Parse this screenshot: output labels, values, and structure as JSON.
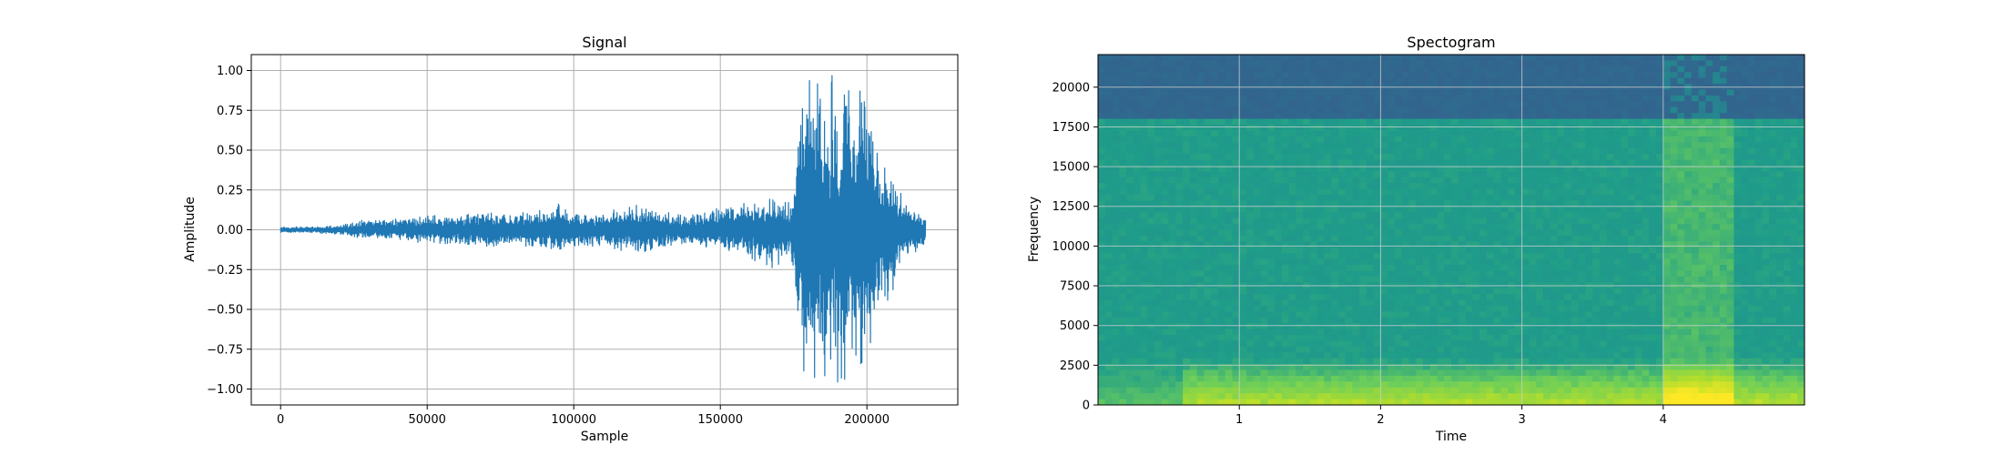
{
  "chart_data": [
    {
      "type": "line",
      "title": "Signal",
      "xlabel": "Sample",
      "ylabel": "Amplitude",
      "xlim": [
        -10000,
        231000
      ],
      "ylim": [
        -1.1,
        1.1
      ],
      "x_ticks": [
        0,
        50000,
        100000,
        150000,
        200000
      ],
      "x_tick_labels": [
        "0",
        "50000",
        "100000",
        "150000",
        "200000"
      ],
      "y_ticks": [
        1.0,
        0.75,
        0.5,
        0.25,
        0.0,
        -0.25,
        -0.5,
        -0.75,
        -1.0
      ],
      "y_tick_labels": [
        "1.00",
        "0.75",
        "0.50",
        "0.25",
        "0.00",
        "−0.25",
        "−0.50",
        "−0.75",
        "−1.00"
      ],
      "grid": true,
      "color": "#1f77b4",
      "series": [
        {
          "x": [
            0,
            10000,
            20000,
            25000,
            30000,
            40000,
            50000,
            60000,
            70000,
            80000,
            90000,
            95000,
            100000,
            110000,
            120000,
            130000,
            140000,
            150000,
            160000,
            170000,
            175000,
            177000,
            180000,
            185000,
            190000,
            195000,
            200000,
            205000,
            210000,
            215000,
            220000
          ],
          "y": [
            0.02,
            0.02,
            0.03,
            0.06,
            0.07,
            0.07,
            0.09,
            0.11,
            0.12,
            0.1,
            0.13,
            0.17,
            0.12,
            0.1,
            0.17,
            0.12,
            0.1,
            0.15,
            0.18,
            0.2,
            0.22,
            1.0,
            1.0,
            1.0,
            1.0,
            1.0,
            0.9,
            0.55,
            0.3,
            0.15,
            0.11
          ],
          "y_min": [
            -0.02,
            -0.02,
            -0.03,
            -0.05,
            -0.06,
            -0.07,
            -0.09,
            -0.1,
            -0.12,
            -0.1,
            -0.13,
            -0.13,
            -0.12,
            -0.1,
            -0.16,
            -0.12,
            -0.1,
            -0.14,
            -0.2,
            -0.25,
            -0.27,
            -1.0,
            -1.0,
            -1.0,
            -1.0,
            -1.0,
            -0.85,
            -0.6,
            -0.35,
            -0.18,
            -0.12
          ]
        }
      ]
    },
    {
      "type": "heatmap",
      "title": "Spectogram",
      "xlabel": "Time",
      "ylabel": "Frequency",
      "xlim": [
        0,
        5.0
      ],
      "ylim": [
        0,
        22050
      ],
      "x_ticks": [
        1,
        2,
        3,
        4
      ],
      "x_tick_labels": [
        "1",
        "2",
        "3",
        "4"
      ],
      "y_ticks": [
        0,
        2500,
        5000,
        7500,
        10000,
        12500,
        15000,
        17500,
        20000
      ],
      "y_tick_labels": [
        "0",
        "2500",
        "5000",
        "7500",
        "10000",
        "12500",
        "15000",
        "17500",
        "20000"
      ],
      "grid": true,
      "colormap": "viridis",
      "cutoff_frequency": 18000,
      "bright_band_time": [
        4.0,
        4.5
      ]
    }
  ]
}
